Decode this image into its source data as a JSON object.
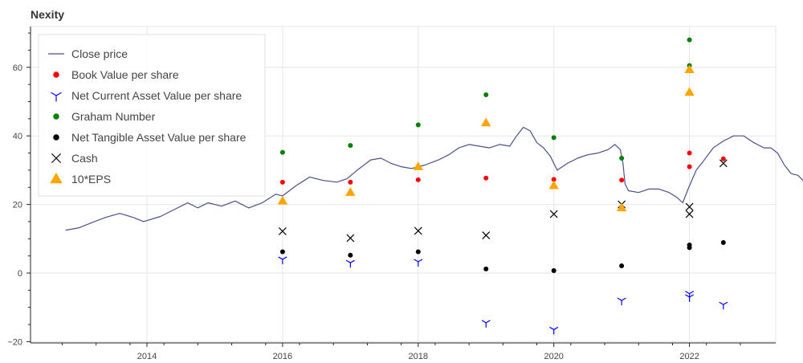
{
  "chart_data": {
    "type": "scatter",
    "title": "Nexity",
    "xlabel": "",
    "ylabel": "",
    "xlim": [
      2012.6,
      2023.2
    ],
    "ylim": [
      -20.5,
      72
    ],
    "grid": true,
    "legend_position": "top-left",
    "x_ticks": [
      2014,
      2016,
      2018,
      2020,
      2022
    ],
    "x_tick_labels": [
      "2014",
      "2016",
      "2018",
      "2020",
      "2022"
    ],
    "y_ticks": [
      -20,
      0,
      20,
      40,
      60
    ],
    "y_tick_labels": [
      "−20",
      "0",
      "20",
      "40",
      "60"
    ],
    "colors": {
      "close": "#4b4f8c",
      "book": "#ff0000",
      "ncav": "#0000ff",
      "graham": "#008000",
      "ntav": "#000000",
      "cash": "#000000",
      "eps": "#ffa500"
    },
    "series": [
      {
        "name": "Close price",
        "kind": "line",
        "points": [
          [
            2012.8,
            12.5
          ],
          [
            2013.0,
            13.2
          ],
          [
            2013.2,
            14.8
          ],
          [
            2013.4,
            16.3
          ],
          [
            2013.6,
            17.4
          ],
          [
            2013.8,
            16.2
          ],
          [
            2013.95,
            15.0
          ],
          [
            2014.2,
            16.5
          ],
          [
            2014.4,
            18.5
          ],
          [
            2014.6,
            20.5
          ],
          [
            2014.75,
            19.0
          ],
          [
            2014.9,
            20.5
          ],
          [
            2015.1,
            19.5
          ],
          [
            2015.3,
            21.0
          ],
          [
            2015.5,
            19.0
          ],
          [
            2015.7,
            20.5
          ],
          [
            2015.9,
            23.0
          ],
          [
            2016.0,
            22.5
          ],
          [
            2016.2,
            25.5
          ],
          [
            2016.4,
            28.0
          ],
          [
            2016.6,
            27.0
          ],
          [
            2016.8,
            26.5
          ],
          [
            2016.95,
            27.5
          ],
          [
            2017.1,
            30.0
          ],
          [
            2017.3,
            33.0
          ],
          [
            2017.45,
            33.5
          ],
          [
            2017.6,
            32.0
          ],
          [
            2017.75,
            31.0
          ],
          [
            2017.9,
            30.5
          ],
          [
            2018.1,
            31.5
          ],
          [
            2018.3,
            33.0
          ],
          [
            2018.45,
            34.5
          ],
          [
            2018.6,
            36.5
          ],
          [
            2018.75,
            37.5
          ],
          [
            2018.9,
            37.0
          ],
          [
            2019.05,
            36.5
          ],
          [
            2019.2,
            37.5
          ],
          [
            2019.35,
            37.0
          ],
          [
            2019.45,
            40.0
          ],
          [
            2019.55,
            42.5
          ],
          [
            2019.65,
            41.5
          ],
          [
            2019.75,
            38.0
          ],
          [
            2019.85,
            36.5
          ],
          [
            2019.95,
            34.0
          ],
          [
            2020.05,
            30.0
          ],
          [
            2020.2,
            32.0
          ],
          [
            2020.35,
            33.5
          ],
          [
            2020.5,
            34.5
          ],
          [
            2020.65,
            35.0
          ],
          [
            2020.8,
            36.0
          ],
          [
            2020.9,
            37.5
          ],
          [
            2020.98,
            36.0
          ],
          [
            2021.02,
            32.0
          ],
          [
            2021.05,
            26.0
          ],
          [
            2021.1,
            24.0
          ],
          [
            2021.25,
            23.5
          ],
          [
            2021.4,
            24.5
          ],
          [
            2021.55,
            24.5
          ],
          [
            2021.7,
            23.5
          ],
          [
            2021.82,
            22.0
          ],
          [
            2021.9,
            20.5
          ],
          [
            2021.98,
            24.5
          ],
          [
            2022.1,
            30.0
          ],
          [
            2022.2,
            32.5
          ],
          [
            2022.35,
            36.5
          ],
          [
            2022.5,
            38.5
          ],
          [
            2022.65,
            40.0
          ],
          [
            2022.8,
            40.0
          ],
          [
            2022.95,
            38.0
          ],
          [
            2023.1,
            36.5
          ],
          [
            2023.2,
            36.5
          ],
          [
            2023.3,
            35.0
          ],
          [
            2023.4,
            31.5
          ],
          [
            2023.5,
            29.0
          ],
          [
            2023.6,
            28.5
          ],
          [
            2023.7,
            26.5
          ],
          [
            2023.8,
            25.5
          ],
          [
            2023.9,
            23.5
          ],
          [
            2024.0,
            22.5
          ],
          [
            2024.1,
            21.0
          ],
          [
            2024.15,
            19.5
          ]
        ]
      },
      {
        "name": "Book Value per share",
        "kind": "dot",
        "points": [
          [
            2016.0,
            26.5
          ],
          [
            2017.0,
            26.5
          ],
          [
            2018.0,
            27.2
          ],
          [
            2019.0,
            27.7
          ],
          [
            2020.0,
            27.3
          ],
          [
            2021.0,
            27.1
          ],
          [
            2022.0,
            35.0
          ],
          [
            2022.0,
            31.0
          ],
          [
            2022.5,
            33.3
          ]
        ]
      },
      {
        "name": "Net Current Asset Value per share",
        "kind": "tri",
        "points": [
          [
            2016.0,
            4.0
          ],
          [
            2017.0,
            3.0
          ],
          [
            2018.0,
            3.3
          ],
          [
            2019.0,
            -14.5
          ],
          [
            2020.0,
            -16.5
          ],
          [
            2021.0,
            -8.0
          ],
          [
            2022.0,
            -6.0
          ],
          [
            2022.0,
            -7.0
          ],
          [
            2022.5,
            -9.2
          ]
        ]
      },
      {
        "name": "Graham Number",
        "kind": "dot",
        "points": [
          [
            2016.0,
            35.2
          ],
          [
            2017.0,
            37.2
          ],
          [
            2018.0,
            43.2
          ],
          [
            2019.0,
            52.0
          ],
          [
            2020.0,
            39.5
          ],
          [
            2021.0,
            33.5
          ],
          [
            2022.0,
            68.0
          ],
          [
            2022.0,
            60.5
          ]
        ]
      },
      {
        "name": "Net Tangible Asset Value per share",
        "kind": "dot",
        "points": [
          [
            2016.0,
            6.2
          ],
          [
            2017.0,
            5.2
          ],
          [
            2018.0,
            6.2
          ],
          [
            2019.0,
            1.2
          ],
          [
            2020.0,
            0.7
          ],
          [
            2021.0,
            2.1
          ],
          [
            2022.0,
            8.2
          ],
          [
            2022.0,
            7.4
          ],
          [
            2022.5,
            8.9
          ]
        ]
      },
      {
        "name": "Cash",
        "kind": "x",
        "points": [
          [
            2016.0,
            12.2
          ],
          [
            2017.0,
            10.2
          ],
          [
            2018.0,
            12.3
          ],
          [
            2019.0,
            11.0
          ],
          [
            2020.0,
            17.2
          ],
          [
            2021.0,
            20.0
          ],
          [
            2022.0,
            19.3
          ],
          [
            2022.0,
            17.2
          ],
          [
            2022.5,
            32.0
          ]
        ]
      },
      {
        "name": "10*EPS",
        "kind": "triangle",
        "points": [
          [
            2016.0,
            21.0
          ],
          [
            2017.0,
            23.5
          ],
          [
            2018.0,
            31.0
          ],
          [
            2019.0,
            43.8
          ],
          [
            2020.0,
            25.5
          ],
          [
            2021.0,
            19.0
          ],
          [
            2022.0,
            59.3
          ],
          [
            2022.0,
            52.7
          ]
        ]
      }
    ]
  }
}
